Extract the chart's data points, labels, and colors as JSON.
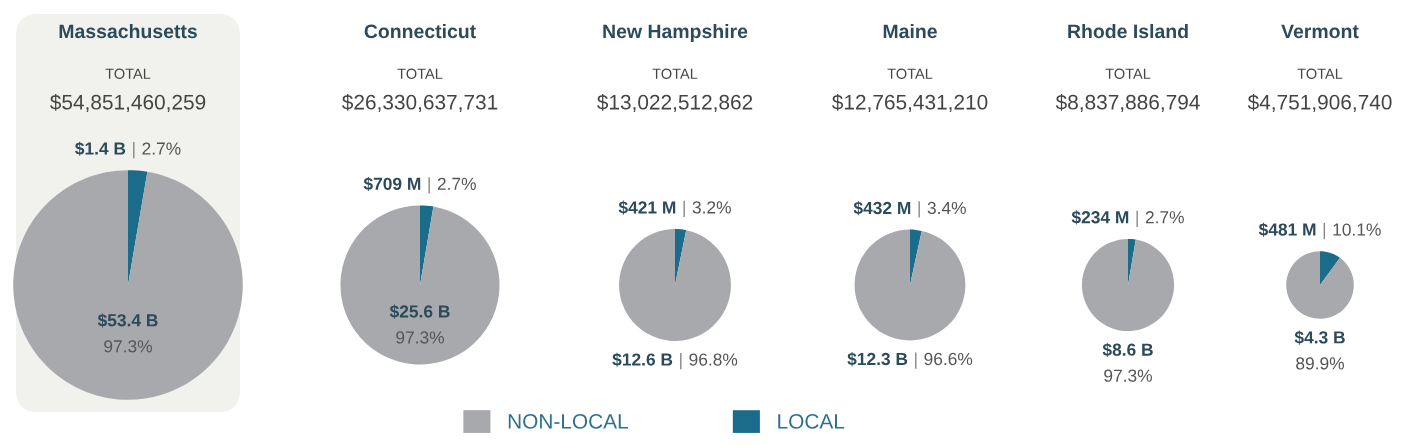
{
  "chart_data": [
    {
      "type": "pie",
      "title": "Massachusetts",
      "subtitle": "TOTAL",
      "annotations": [
        "$54,851,460,259"
      ],
      "categories": [
        "NON-LOCAL",
        "LOCAL"
      ],
      "values": [
        97.3,
        2.7
      ],
      "colors": [
        "#a7a9ac",
        "#1b6b8a"
      ],
      "value_labels": [
        "$53.4 B\n97.3%",
        "$1.4 B | 2.7%"
      ],
      "legend": "bottom"
    },
    {
      "type": "pie",
      "title": "Connecticut",
      "subtitle": "TOTAL",
      "annotations": [
        "$26,330,637,731"
      ],
      "categories": [
        null,
        null
      ],
      "values": [
        97.3,
        2.7
      ],
      "colors": [
        "#a7a9ac",
        "#1b6b8a"
      ],
      "value_labels": [
        "$25.6 B\n97.3%",
        "$709 M | 2.7%"
      ]
    },
    {
      "type": "pie",
      "title": "New Hampshire",
      "subtitle": "TOTAL",
      "annotations": [
        "$13,022,512,862"
      ],
      "categories": [
        null,
        null
      ],
      "values": [
        96.8,
        3.2
      ],
      "colors": [
        "#a7a9ac",
        "#1b6b8a"
      ],
      "value_labels": [
        "$12.6 B | 96.8%",
        "$421 M | 3.2%"
      ]
    },
    {
      "type": "pie",
      "title": "Maine",
      "subtitle": "TOTAL",
      "annotations": [
        "$12,765,431,210"
      ],
      "categories": [
        null,
        null
      ],
      "values": [
        96.6,
        3.4
      ],
      "colors": [
        "#a7a9ac",
        "#1b6b8a"
      ],
      "value_labels": [
        "$12.3 B | 96.6%",
        "$432 M | 3.4%"
      ]
    },
    {
      "type": "pie",
      "title": "Rhode Island",
      "subtitle": "TOTAL",
      "annotations": [
        "$8,837,886,794"
      ],
      "categories": [
        null,
        null
      ],
      "values": [
        97.3,
        2.7
      ],
      "colors": [
        "#a7a9ac",
        "#1b6b8a"
      ],
      "value_labels": [
        "$8.6 B\n97.3%",
        "$234 M | 2.7%"
      ]
    },
    {
      "type": "pie",
      "title": "Vermont",
      "subtitle": "TOTAL",
      "annotations": [
        "$4,751,906,740"
      ],
      "categories": [
        null,
        null
      ],
      "values": [
        89.9,
        10.1
      ],
      "colors": [
        "#a7a9ac",
        "#1b6b8a"
      ],
      "value_labels": [
        "$4.3 B\n89.9%",
        "$481 M | 10.1%"
      ]
    }
  ]
}
